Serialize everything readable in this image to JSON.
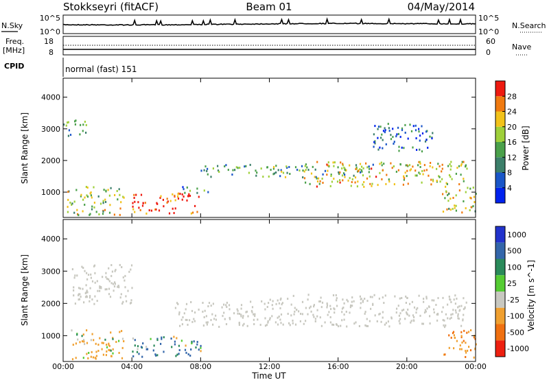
{
  "header": {
    "station": "Stokkseyri (fitACF)",
    "beam": "Beam 01",
    "date": "04/May/2014"
  },
  "nsky_panel": {
    "left_label": "N.Sky",
    "left_ticks": [
      "10^5",
      "10^0"
    ],
    "right_label": "N.Search",
    "right_ticks": [
      "10^5",
      "10^0"
    ]
  },
  "freq_panel": {
    "left_label_1": "Freq.",
    "left_label_2": "[MHz]",
    "left_ticks": [
      "18",
      "8"
    ],
    "right_label": "Nave",
    "right_ticks": [
      "60",
      "0"
    ]
  },
  "cpid_panel": {
    "label": "CPID",
    "value": "normal (fast) 151"
  },
  "colors": {
    "power": [
      "#0022ee",
      "#1a56c8",
      "#3c7f6a",
      "#4aa04a",
      "#9fd03a",
      "#f2c21a",
      "#f07a10",
      "#ee1a10"
    ],
    "velocity": [
      "#2233cc",
      "#3366aa",
      "#2a8a5a",
      "#55cc33",
      "#c8c8c0",
      "#f0a030",
      "#f07010",
      "#ee2010"
    ],
    "ground_scatter": "#c8c8c0"
  },
  "chart_data": [
    {
      "type": "heatmap",
      "title": "Power",
      "xlabel": "",
      "ylabel": "Slant Range [km]",
      "xticks": [
        "00:00",
        "04:00",
        "08:00",
        "12:00",
        "16:00",
        "20:00",
        "00:00"
      ],
      "yticks": [
        "1000",
        "2000",
        "3000",
        "4000"
      ],
      "ylim": [
        200,
        4600
      ],
      "colorbar": {
        "label": "Power [dB]",
        "ticks": [
          "4",
          "8",
          "12",
          "16",
          "20",
          "24",
          "28"
        ],
        "range": [
          0,
          32
        ]
      },
      "regions": [
        {
          "t": [
            0.2,
            3.5
          ],
          "r": [
            300,
            1200
          ],
          "level": 0.55
        },
        {
          "t": [
            4.0,
            8.0
          ],
          "r": [
            350,
            1000
          ],
          "level": 0.95
        },
        {
          "t": [
            0.0,
            1.5
          ],
          "r": [
            2800,
            3300
          ],
          "level": 0.4
        },
        {
          "t": [
            6.5,
            8.5
          ],
          "r": [
            1000,
            1200
          ],
          "level": 0.3
        },
        {
          "t": [
            8.0,
            18.0
          ],
          "r": [
            1500,
            1900
          ],
          "level": 0.4
        },
        {
          "t": [
            14.0,
            23.5
          ],
          "r": [
            1200,
            2000
          ],
          "level": 0.65
        },
        {
          "t": [
            18.0,
            21.5
          ],
          "r": [
            2300,
            3200
          ],
          "level": 0.25
        },
        {
          "t": [
            22.0,
            24.0
          ],
          "r": [
            350,
            1200
          ],
          "level": 0.6
        }
      ]
    },
    {
      "type": "heatmap",
      "title": "Velocity",
      "xlabel": "Time UT",
      "ylabel": "Slant Range [km]",
      "xticks": [
        "00:00",
        "04:00",
        "08:00",
        "12:00",
        "16:00",
        "20:00",
        "00:00"
      ],
      "yticks": [
        "1000",
        "2000",
        "3000",
        "4000"
      ],
      "ylim": [
        200,
        4600
      ],
      "colorbar": {
        "label": "Velocity [m s^-1]",
        "ticks": [
          "1000",
          "500",
          "100",
          "25",
          "-25",
          "-100",
          "-500",
          "-1000"
        ]
      },
      "regions": [
        {
          "t": [
            0.2,
            3.5
          ],
          "r": [
            300,
            1200
          ],
          "v": -200
        },
        {
          "t": [
            4.0,
            8.0
          ],
          "r": [
            350,
            1000
          ],
          "v": 120
        },
        {
          "t": [
            6.5,
            12.0
          ],
          "r": [
            1300,
            2100
          ],
          "v": 0
        },
        {
          "t": [
            12.0,
            23.5
          ],
          "r": [
            1300,
            2300
          ],
          "v": 0
        },
        {
          "t": [
            0.5,
            4.0
          ],
          "r": [
            2000,
            3300
          ],
          "v": 0
        },
        {
          "t": [
            22.0,
            24.0
          ],
          "r": [
            350,
            1200
          ],
          "v": -400
        }
      ]
    }
  ]
}
